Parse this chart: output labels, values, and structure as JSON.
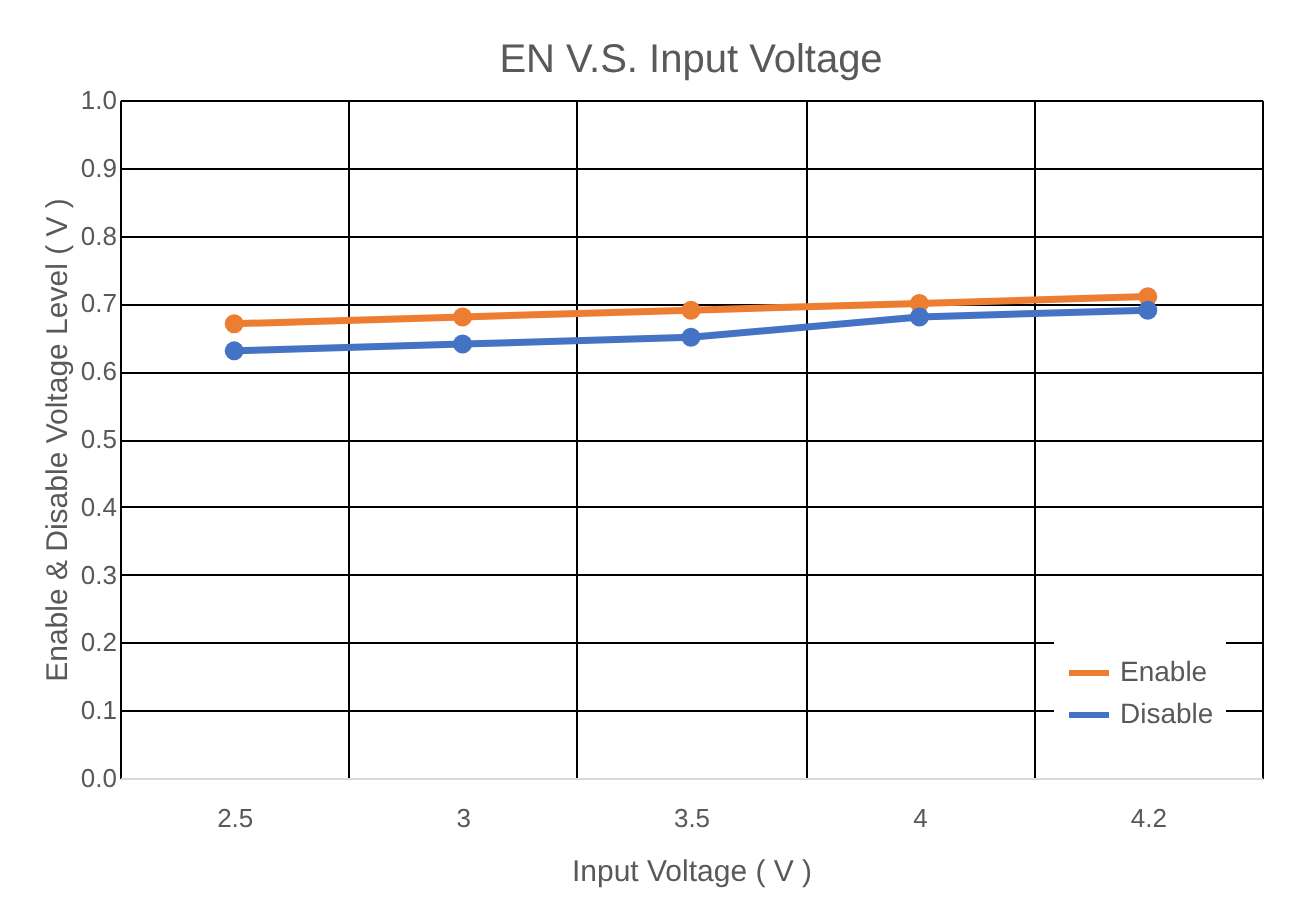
{
  "chart_data": {
    "type": "line",
    "title": "EN V.S. Input Voltage",
    "xlabel": "Input Voltage ( V )",
    "ylabel": "Enable & Disable Voltage Level ( V )",
    "categories": [
      "2.5",
      "3",
      "3.5",
      "4",
      "4.2"
    ],
    "series": [
      {
        "name": "Enable",
        "color": "#ed7d31",
        "values": [
          0.67,
          0.68,
          0.69,
          0.7,
          0.71
        ]
      },
      {
        "name": "Disable",
        "color": "#4472c4",
        "values": [
          0.63,
          0.64,
          0.65,
          0.68,
          0.69
        ]
      }
    ],
    "ylim": [
      0,
      1
    ],
    "yticks": [
      {
        "value": 0,
        "label": "0.0"
      },
      {
        "value": 0.1,
        "label": "0.1"
      },
      {
        "value": 0.2,
        "label": "0.2"
      },
      {
        "value": 0.3,
        "label": "0.3"
      },
      {
        "value": 0.4,
        "label": "0.4"
      },
      {
        "value": 0.5,
        "label": "0.5"
      },
      {
        "value": 0.6,
        "label": "0.6"
      },
      {
        "value": 0.7,
        "label": "0.7"
      },
      {
        "value": 0.8,
        "label": "0.8"
      },
      {
        "value": 0.9,
        "label": "0.9"
      },
      {
        "value": 1,
        "label": "1.0"
      }
    ],
    "grid": true,
    "legend": "bottom right",
    "marker": "circle",
    "line_style": "solid"
  }
}
